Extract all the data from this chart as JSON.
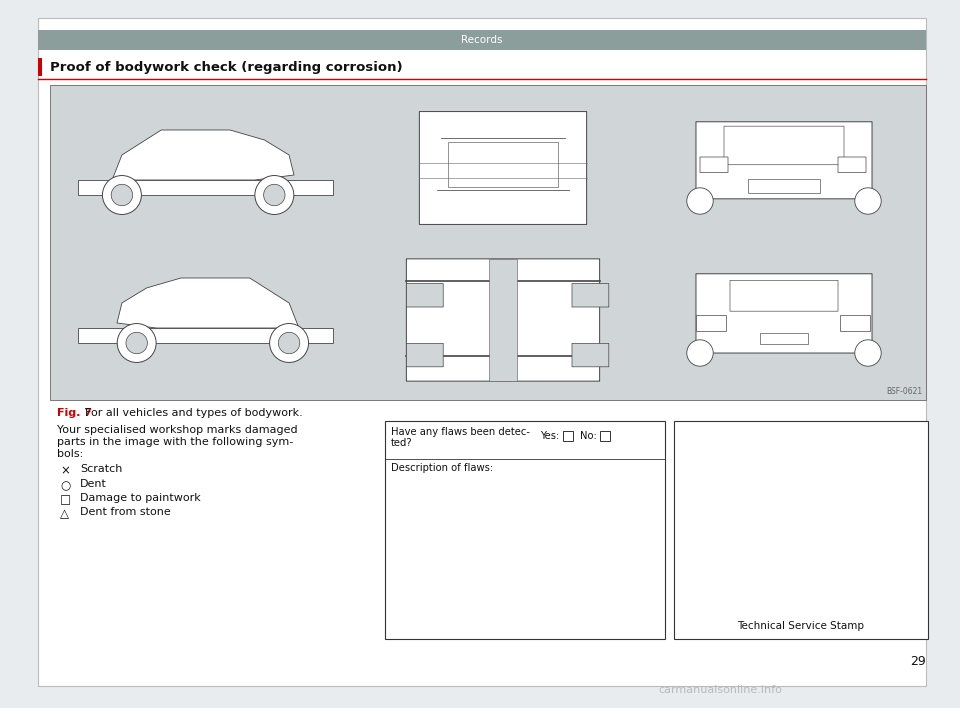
{
  "page_bg": "#e8ecee",
  "content_bg": "#ffffff",
  "header_bg": "#8c9e9b",
  "header_text": "Records",
  "header_text_color": "#ffffff",
  "section_title": "Proof of bodywork check (regarding corrosion)",
  "section_title_color": "#1a1a1a",
  "red_line_color": "#cc0000",
  "fig_caption_red": "Fig. 7",
  "fig_caption_black": "  For all vehicles and types of bodywork.",
  "car_image_bg": "#d0d5d8",
  "body_text_line1": "Your specialised workshop marks damaged",
  "body_text_line2": "parts in the image with the following sym-",
  "body_text_line3": "bols:",
  "symbols": [
    {
      "symbol": "×",
      "label": "Scratch"
    },
    {
      "symbol": "○",
      "label": "Dent"
    },
    {
      "symbol": "□",
      "label": "Damage to paintwork"
    },
    {
      "symbol": "△",
      "label": "Dent from stone"
    }
  ],
  "flaws_top_text": "Have any flaws been detec-",
  "flaws_top_text2": "ted?",
  "yes_label": "Yes:",
  "no_label": "No:",
  "desc_label": "Description of flaws:",
  "stamp_label": "Technical Service Stamp",
  "page_number": "29",
  "bsf_code": "BSF-0621",
  "watermark": "carmanualsonline.info",
  "inner_box_border": "#555555",
  "text_color": "#111111"
}
